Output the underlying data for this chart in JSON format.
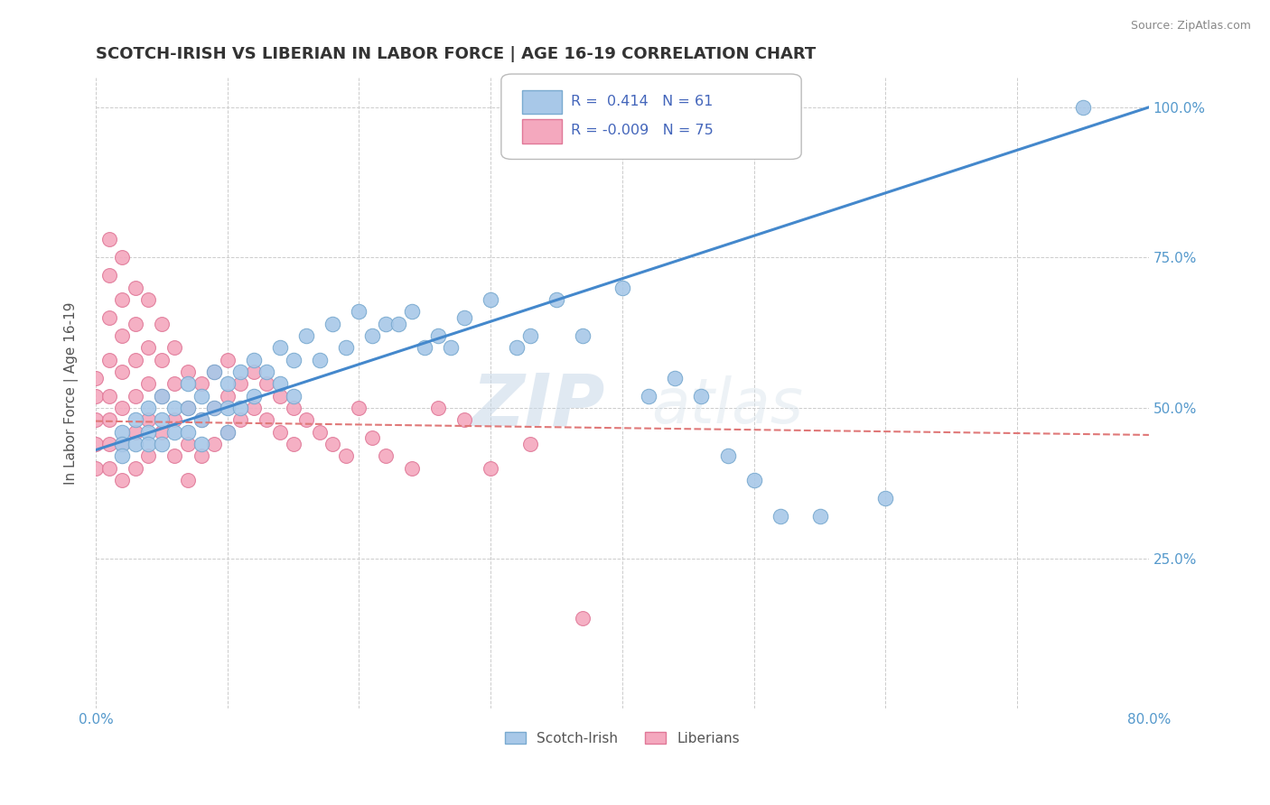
{
  "title": "SCOTCH-IRISH VS LIBERIAN IN LABOR FORCE | AGE 16-19 CORRELATION CHART",
  "source": "Source: ZipAtlas.com",
  "ylabel": "In Labor Force | Age 16-19",
  "xlim": [
    0.0,
    0.8
  ],
  "ylim": [
    0.0,
    1.05
  ],
  "x_ticks": [
    0.0,
    0.1,
    0.2,
    0.3,
    0.4,
    0.5,
    0.6,
    0.7,
    0.8
  ],
  "x_tick_labels": [
    "0.0%",
    "",
    "",
    "",
    "",
    "",
    "",
    "",
    "80.0%"
  ],
  "y_ticks": [
    0.0,
    0.25,
    0.5,
    0.75,
    1.0
  ],
  "y_tick_labels": [
    "",
    "25.0%",
    "50.0%",
    "75.0%",
    "100.0%"
  ],
  "scotch_irish_color": "#A8C8E8",
  "scotch_irish_edge": "#7AAAD0",
  "liberian_color": "#F4A8BE",
  "liberian_edge": "#E07898",
  "trend_scotch_color": "#4488CC",
  "trend_liberian_color": "#E07878",
  "legend_text_color": "#4466BB",
  "watermark": "ZIPatlas",
  "background_color": "#FFFFFF",
  "grid_color": "#CCCCCC",
  "scotch_x": [
    0.02,
    0.02,
    0.02,
    0.03,
    0.03,
    0.04,
    0.04,
    0.04,
    0.05,
    0.05,
    0.05,
    0.06,
    0.06,
    0.07,
    0.07,
    0.07,
    0.08,
    0.08,
    0.08,
    0.09,
    0.09,
    0.1,
    0.1,
    0.1,
    0.11,
    0.11,
    0.12,
    0.12,
    0.13,
    0.14,
    0.14,
    0.15,
    0.15,
    0.16,
    0.17,
    0.18,
    0.19,
    0.2,
    0.21,
    0.22,
    0.23,
    0.24,
    0.25,
    0.26,
    0.27,
    0.28,
    0.3,
    0.32,
    0.33,
    0.35,
    0.37,
    0.4,
    0.42,
    0.44,
    0.46,
    0.48,
    0.5,
    0.52,
    0.55,
    0.6,
    0.75
  ],
  "scotch_y": [
    0.46,
    0.44,
    0.42,
    0.48,
    0.44,
    0.5,
    0.46,
    0.44,
    0.52,
    0.48,
    0.44,
    0.5,
    0.46,
    0.54,
    0.5,
    0.46,
    0.52,
    0.48,
    0.44,
    0.56,
    0.5,
    0.54,
    0.5,
    0.46,
    0.56,
    0.5,
    0.58,
    0.52,
    0.56,
    0.6,
    0.54,
    0.58,
    0.52,
    0.62,
    0.58,
    0.64,
    0.6,
    0.66,
    0.62,
    0.64,
    0.64,
    0.66,
    0.6,
    0.62,
    0.6,
    0.65,
    0.68,
    0.6,
    0.62,
    0.68,
    0.62,
    0.7,
    0.52,
    0.55,
    0.52,
    0.42,
    0.38,
    0.32,
    0.32,
    0.35,
    1.0
  ],
  "liberian_x": [
    0.0,
    0.0,
    0.0,
    0.0,
    0.0,
    0.01,
    0.01,
    0.01,
    0.01,
    0.01,
    0.01,
    0.01,
    0.01,
    0.02,
    0.02,
    0.02,
    0.02,
    0.02,
    0.02,
    0.02,
    0.03,
    0.03,
    0.03,
    0.03,
    0.03,
    0.03,
    0.04,
    0.04,
    0.04,
    0.04,
    0.04,
    0.05,
    0.05,
    0.05,
    0.05,
    0.06,
    0.06,
    0.06,
    0.06,
    0.07,
    0.07,
    0.07,
    0.07,
    0.08,
    0.08,
    0.08,
    0.09,
    0.09,
    0.09,
    0.1,
    0.1,
    0.1,
    0.11,
    0.11,
    0.12,
    0.12,
    0.13,
    0.13,
    0.14,
    0.14,
    0.15,
    0.15,
    0.16,
    0.17,
    0.18,
    0.19,
    0.2,
    0.21,
    0.22,
    0.24,
    0.26,
    0.28,
    0.3,
    0.33,
    0.37
  ],
  "liberian_y": [
    0.55,
    0.52,
    0.48,
    0.44,
    0.4,
    0.78,
    0.72,
    0.65,
    0.58,
    0.52,
    0.48,
    0.44,
    0.4,
    0.75,
    0.68,
    0.62,
    0.56,
    0.5,
    0.44,
    0.38,
    0.7,
    0.64,
    0.58,
    0.52,
    0.46,
    0.4,
    0.68,
    0.6,
    0.54,
    0.48,
    0.42,
    0.64,
    0.58,
    0.52,
    0.46,
    0.6,
    0.54,
    0.48,
    0.42,
    0.56,
    0.5,
    0.44,
    0.38,
    0.54,
    0.48,
    0.42,
    0.56,
    0.5,
    0.44,
    0.58,
    0.52,
    0.46,
    0.54,
    0.48,
    0.56,
    0.5,
    0.54,
    0.48,
    0.52,
    0.46,
    0.5,
    0.44,
    0.48,
    0.46,
    0.44,
    0.42,
    0.5,
    0.45,
    0.42,
    0.4,
    0.5,
    0.48,
    0.4,
    0.44,
    0.15
  ],
  "trend_si_x0": 0.0,
  "trend_si_y0": 0.43,
  "trend_si_x1": 0.8,
  "trend_si_y1": 1.0,
  "trend_lib_x0": 0.0,
  "trend_lib_y0": 0.478,
  "trend_lib_x1": 0.8,
  "trend_lib_y1": 0.455
}
